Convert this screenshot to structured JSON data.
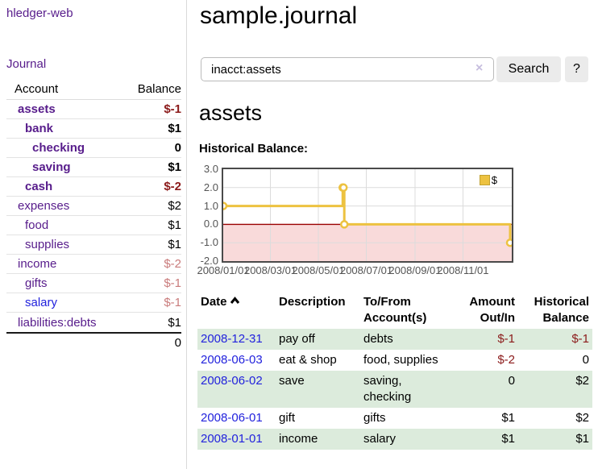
{
  "app": {
    "brand": "hledger-web",
    "nav_journal": "Journal"
  },
  "colors": {
    "link_purple": "#571c8b",
    "link_blue": "#2222dd",
    "negative_strong": "#8b1a1a",
    "negative_dim": "#c97b7b",
    "row_green": "#dcebdc",
    "chart_line_yellow": "#edc240",
    "chart_zero_line_red": "#990000",
    "chart_negative_fill_pink": "#f9dada"
  },
  "sidebar": {
    "headers": {
      "account": "Account",
      "balance": "Balance"
    },
    "accounts": [
      {
        "name": "assets",
        "balance": "$-1",
        "depth": 1,
        "bold": true,
        "neg": "strong"
      },
      {
        "name": "bank",
        "balance": "$1",
        "depth": 2,
        "bold": true,
        "neg": "none"
      },
      {
        "name": "checking",
        "balance": "0",
        "depth": 3,
        "bold": true,
        "neg": "none"
      },
      {
        "name": "saving",
        "balance": "$1",
        "depth": 3,
        "bold": true,
        "neg": "none"
      },
      {
        "name": "cash",
        "balance": "$-2",
        "depth": 2,
        "bold": true,
        "neg": "strong"
      },
      {
        "name": "expenses",
        "balance": "$2",
        "depth": 1,
        "bold": false,
        "neg": "none"
      },
      {
        "name": "food",
        "balance": "$1",
        "depth": 2,
        "bold": false,
        "neg": "none"
      },
      {
        "name": "supplies",
        "balance": "$1",
        "depth": 2,
        "bold": false,
        "neg": "none"
      },
      {
        "name": "income",
        "balance": "$-2",
        "depth": 1,
        "bold": false,
        "neg": "dim"
      },
      {
        "name": "gifts",
        "balance": "$-1",
        "depth": 2,
        "bold": false,
        "neg": "dim"
      },
      {
        "name": "salary",
        "balance": "$-1",
        "depth": 2,
        "bold": false,
        "neg": "dim",
        "link": "unvisited"
      },
      {
        "name": "liabilities:debts",
        "balance": "$1",
        "depth": 1,
        "bold": false,
        "neg": "none"
      }
    ],
    "total": "0"
  },
  "main": {
    "title": "sample.journal",
    "search": {
      "value": "inacct:assets",
      "clear_icon": "×",
      "button": "Search",
      "help": "?"
    },
    "account_heading": "assets",
    "chart_label": "Historical Balance:"
  },
  "chart_data": {
    "type": "line",
    "title": "Historical Balance",
    "step": true,
    "series": [
      {
        "name": "$",
        "points": [
          [
            "2008-01-01",
            1
          ],
          [
            "2008-06-01",
            2
          ],
          [
            "2008-06-02",
            2
          ],
          [
            "2008-06-03",
            0
          ],
          [
            "2008-12-31",
            -1
          ]
        ]
      }
    ],
    "x_ticks": [
      "2008/01/01",
      "2008/03/01",
      "2008/05/01",
      "2008/07/01",
      "2008/09/01",
      "2008/11/01"
    ],
    "y_ticks": [
      3.0,
      2.0,
      1.0,
      0.0,
      -1.0,
      -2.0
    ],
    "xlim": [
      "2008-01-01",
      "2008-12-31"
    ],
    "ylim": [
      -2,
      3
    ],
    "grid": true,
    "legend": "$",
    "legend_position": "top-right",
    "zero_line": true,
    "negative_region_shaded": true
  },
  "register": {
    "headers": {
      "date": "Date",
      "description": "Description",
      "accounts": "To/From Account(s)",
      "amount": "Amount Out/In",
      "balance": "Historical Balance"
    },
    "rows": [
      {
        "date": "2008-12-31",
        "description": "pay off",
        "accounts": "debts",
        "amount": "$-1",
        "balance": "$-1"
      },
      {
        "date": "2008-06-03",
        "description": "eat & shop",
        "accounts": "food, supplies",
        "amount": "$-2",
        "balance": "0"
      },
      {
        "date": "2008-06-02",
        "description": "save",
        "accounts": "saving, checking",
        "amount": "0",
        "balance": "$2"
      },
      {
        "date": "2008-06-01",
        "description": "gift",
        "accounts": "gifts",
        "amount": "$1",
        "balance": "$2"
      },
      {
        "date": "2008-01-01",
        "description": "income",
        "accounts": "salary",
        "amount": "$1",
        "balance": "$1"
      }
    ]
  }
}
